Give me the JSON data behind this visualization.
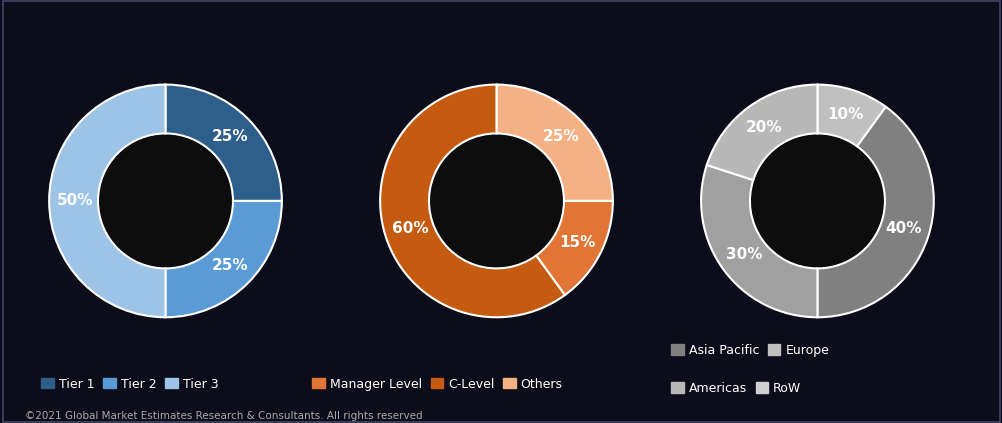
{
  "chart1": {
    "values": [
      25,
      25,
      50
    ],
    "colors": [
      "#2e5f8a",
      "#5b9bd5",
      "#9dc3e6"
    ],
    "labels": [
      "25%",
      "25%",
      "50%"
    ],
    "legend": [
      "Tier 1",
      "Tier 2",
      "Tier 3"
    ],
    "startangle": 90,
    "label_angles": [
      45,
      315,
      180
    ]
  },
  "chart2": {
    "values": [
      25,
      15,
      60
    ],
    "colors": [
      "#f4b183",
      "#e07535",
      "#c55a11"
    ],
    "labels": [
      "25%",
      "15%",
      "60%"
    ],
    "legend": [
      "Others",
      "Manager Level",
      "C-Level"
    ],
    "startangle": 90
  },
  "chart3": {
    "values": [
      10,
      40,
      30,
      20
    ],
    "colors": [
      "#c0c0c0",
      "#808080",
      "#a0a0a0",
      "#b8b8b8"
    ],
    "labels": [
      "10%",
      "40%",
      "30%",
      "20%"
    ],
    "legend_row1": [
      "Asia Pacific",
      "Europe"
    ],
    "legend_row2": [
      "Americas",
      "RoW"
    ],
    "legend_colors_row1": [
      "#808080",
      "#c0c0c0"
    ],
    "legend_colors_row2": [
      "#b8b8b8",
      "#d0d0d0"
    ],
    "startangle": 90
  },
  "footer": "©2021 Global Market Estimates Research & Consultants. All rights reserved",
  "bg_color": "#1a1a2e",
  "hole_color": "#0d0d0d",
  "text_color": "#ffffff",
  "label_fontsize": 11,
  "legend_fontsize": 9,
  "donut_width": 0.42
}
